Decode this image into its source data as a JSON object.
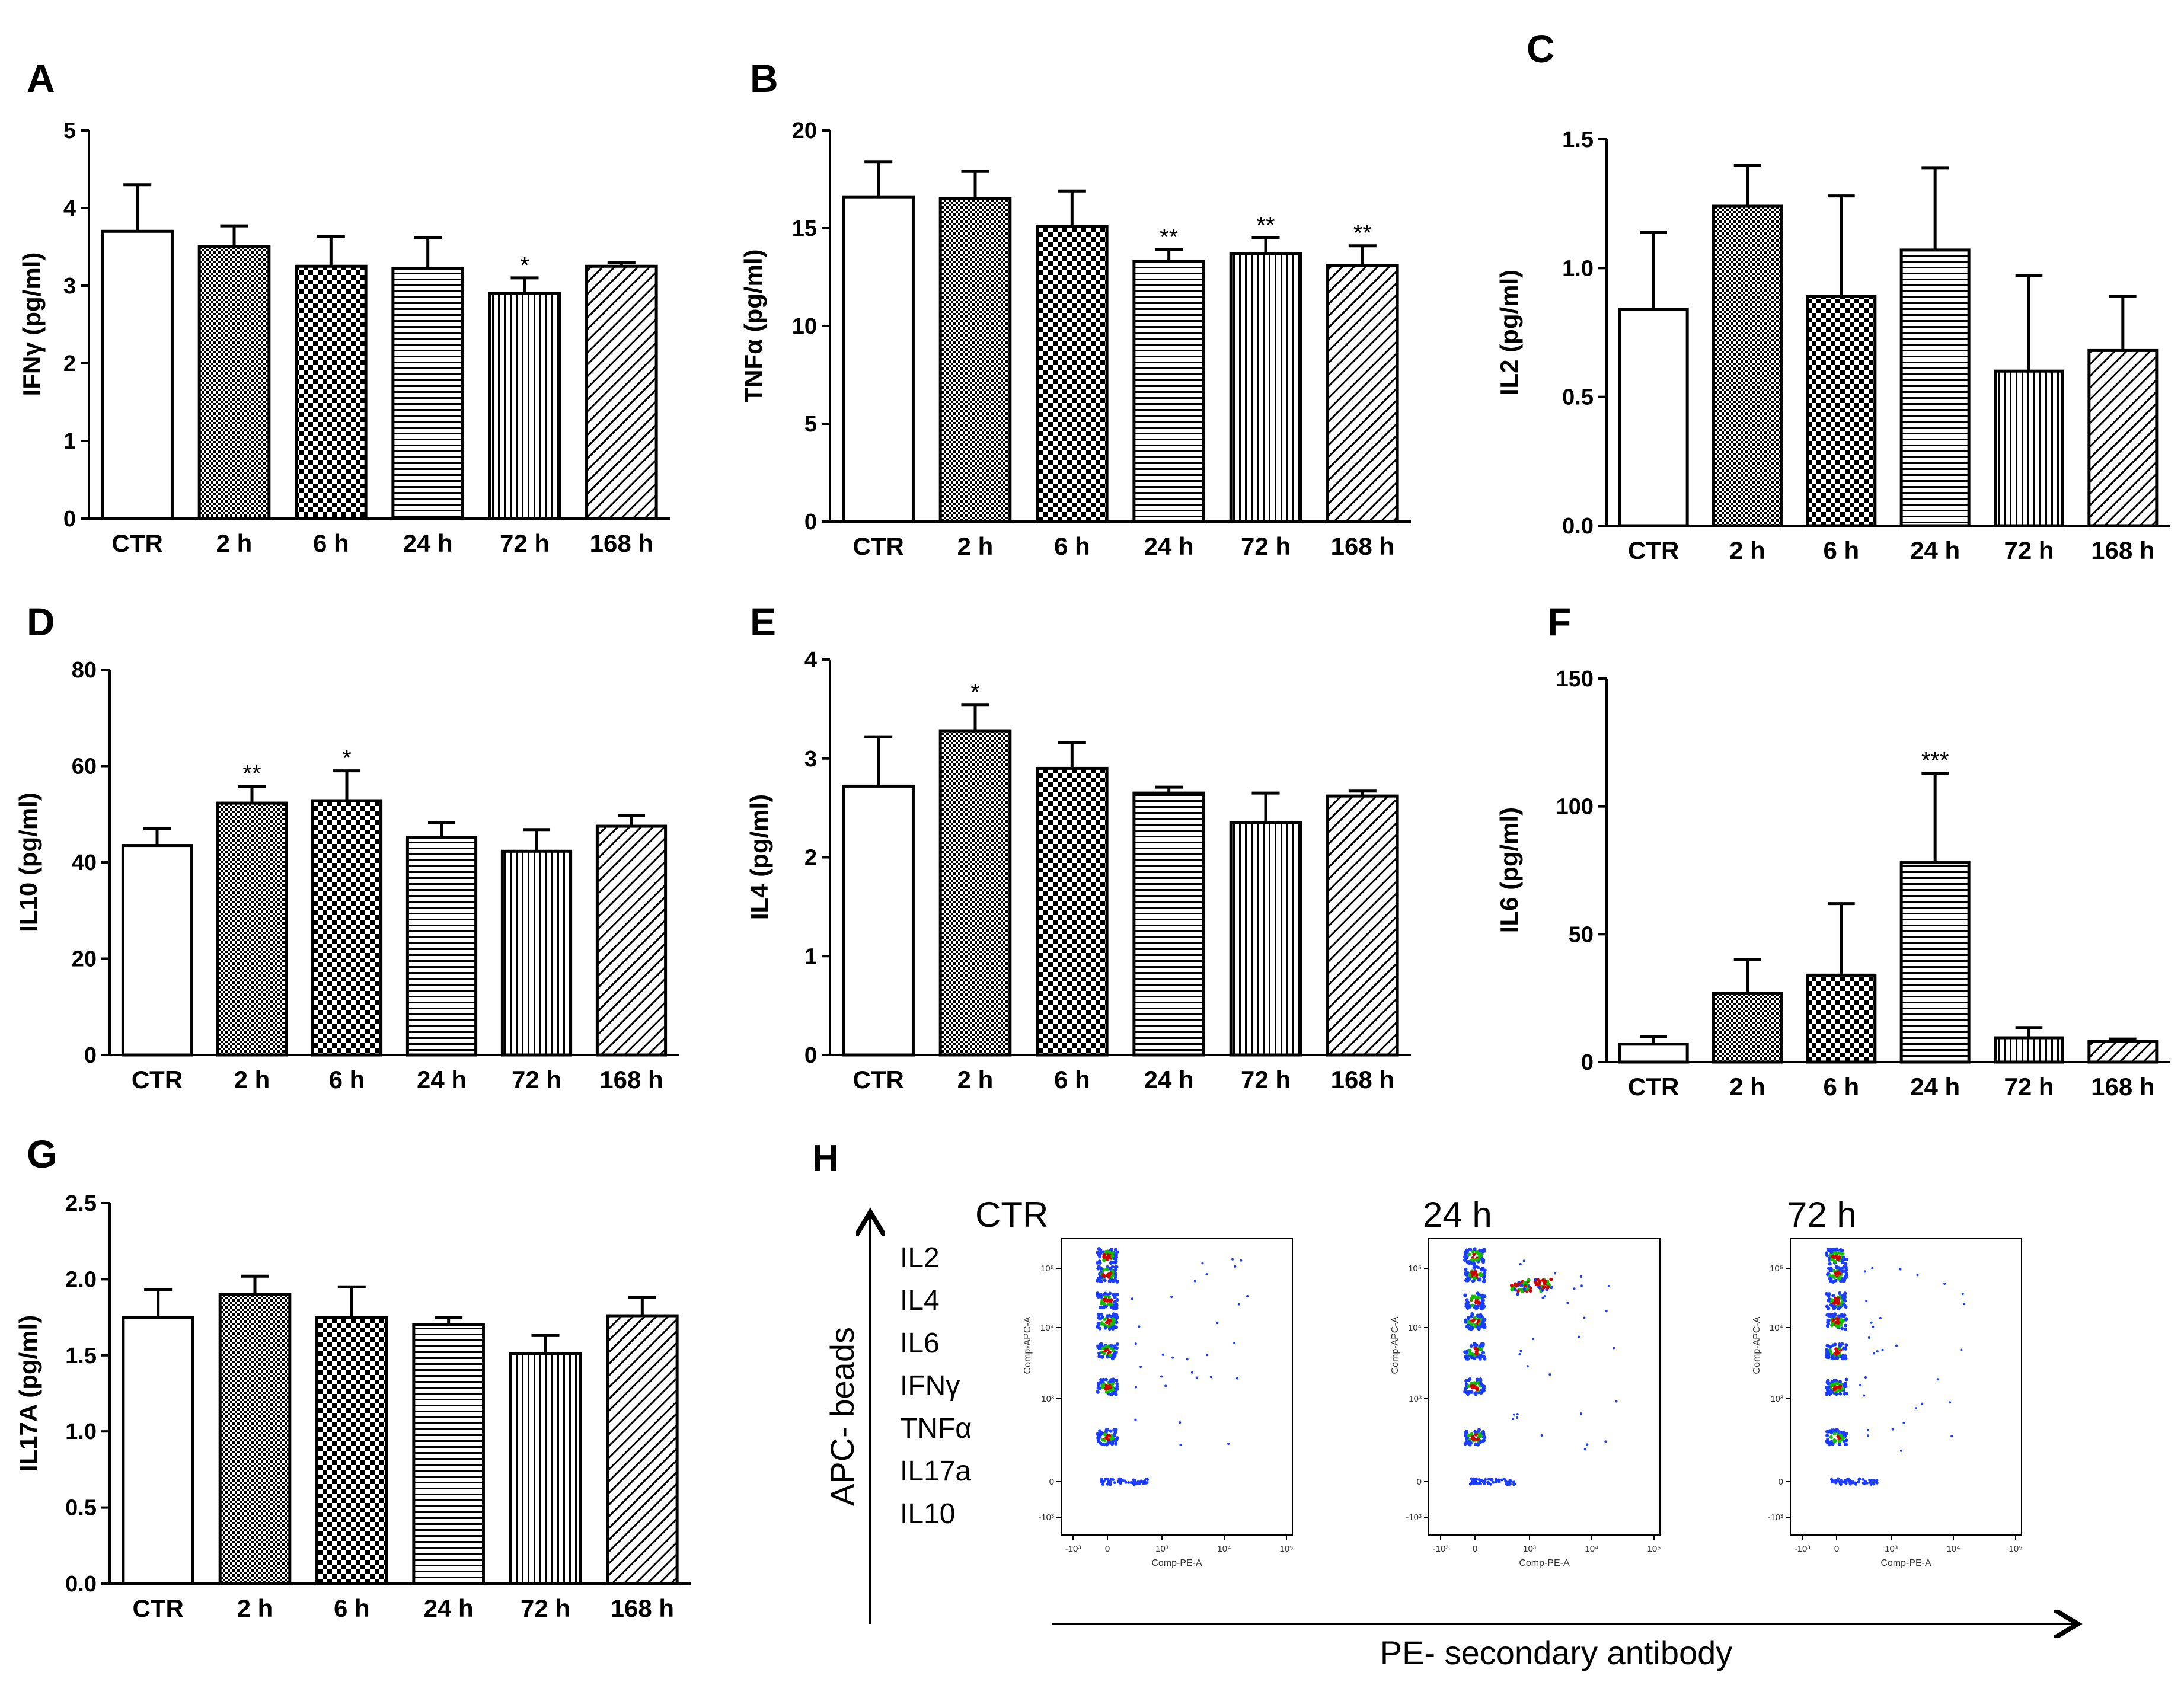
{
  "colors": {
    "ink": "#000000",
    "paper": "#ffffff",
    "dot_high": "#d00000",
    "dot_mid": "#12c000",
    "dot_low": "#1a3cff"
  },
  "chart_data": [
    {
      "type": "bar",
      "panel": "A",
      "ylabel": "IFNγ (pg/ml)",
      "categories": [
        "CTR",
        "2 h",
        "6 h",
        "24 h",
        "72 h",
        "168 h"
      ],
      "values": [
        3.7,
        3.5,
        3.25,
        3.22,
        2.9,
        3.25
      ],
      "errors": [
        0.6,
        0.27,
        0.38,
        0.4,
        0.2,
        0.05
      ],
      "significance": [
        "",
        "",
        "",
        "",
        "*",
        ""
      ],
      "ylim": [
        0,
        5
      ],
      "yticks": [
        "0",
        "1",
        "2",
        "3",
        "4",
        "5"
      ]
    },
    {
      "type": "bar",
      "panel": "B",
      "ylabel": "TNFα (pg/ml)",
      "categories": [
        "CTR",
        "2 h",
        "6 h",
        "24 h",
        "72 h",
        "168 h"
      ],
      "values": [
        16.6,
        16.5,
        15.1,
        13.3,
        13.7,
        13.1
      ],
      "errors": [
        1.8,
        1.4,
        1.8,
        0.6,
        0.8,
        1.0
      ],
      "significance": [
        "",
        "",
        "",
        "**",
        "**",
        "**"
      ],
      "ylim": [
        0,
        20
      ],
      "yticks": [
        "0",
        "5",
        "10",
        "15",
        "20"
      ]
    },
    {
      "type": "bar",
      "panel": "C",
      "ylabel": "IL2 (pg/ml)",
      "categories": [
        "CTR",
        "2 h",
        "6 h",
        "24 h",
        "72 h",
        "168 h"
      ],
      "values": [
        0.84,
        1.24,
        0.89,
        1.07,
        0.6,
        0.68
      ],
      "errors": [
        0.3,
        0.16,
        0.39,
        0.32,
        0.37,
        0.21
      ],
      "significance": [
        "",
        "",
        "",
        "",
        "",
        ""
      ],
      "ylim": [
        0,
        1.5
      ],
      "yticks": [
        "0.0",
        "0.5",
        "1.0",
        "1.5"
      ]
    },
    {
      "type": "bar",
      "panel": "D",
      "ylabel": "IL10 (pg/ml)",
      "categories": [
        "CTR",
        "2 h",
        "6 h",
        "24 h",
        "72 h",
        "168 h"
      ],
      "values": [
        43.5,
        52.3,
        52.8,
        45.2,
        42.3,
        47.5
      ],
      "errors": [
        3.5,
        3.5,
        6.2,
        3.0,
        4.5,
        2.2
      ],
      "significance": [
        "",
        "**",
        "*",
        "",
        "",
        ""
      ],
      "ylim": [
        0,
        80
      ],
      "yticks": [
        "0",
        "20",
        "40",
        "60",
        "80"
      ]
    },
    {
      "type": "bar",
      "panel": "E",
      "ylabel": "IL4 (pg/ml)",
      "categories": [
        "CTR",
        "2 h",
        "6 h",
        "24 h",
        "72 h",
        "168 h"
      ],
      "values": [
        2.72,
        3.28,
        2.9,
        2.65,
        2.35,
        2.62
      ],
      "errors": [
        0.5,
        0.26,
        0.26,
        0.06,
        0.3,
        0.05
      ],
      "significance": [
        "",
        "*",
        "",
        "",
        "",
        ""
      ],
      "ylim": [
        0,
        4
      ],
      "yticks": [
        "0",
        "1",
        "2",
        "3",
        "4"
      ]
    },
    {
      "type": "bar",
      "panel": "F",
      "ylabel": "IL6 (pg/ml)",
      "categories": [
        "CTR",
        "2 h",
        "6 h",
        "24 h",
        "72 h",
        "168 h"
      ],
      "values": [
        7,
        27,
        34,
        78,
        9.5,
        8
      ],
      "errors": [
        3,
        13,
        28,
        35,
        4,
        1
      ],
      "significance": [
        "",
        "",
        "",
        "***",
        "",
        ""
      ],
      "ylim": [
        0,
        150
      ],
      "yticks": [
        "0",
        "50",
        "100",
        "150"
      ]
    },
    {
      "type": "bar",
      "panel": "G",
      "ylabel": "IL17A (pg/ml)",
      "categories": [
        "CTR",
        "2 h",
        "6 h",
        "24 h",
        "72 h",
        "168 h"
      ],
      "values": [
        1.75,
        1.9,
        1.75,
        1.7,
        1.51,
        1.76
      ],
      "errors": [
        0.18,
        0.12,
        0.2,
        0.05,
        0.12,
        0.12
      ],
      "significance": [
        "",
        "",
        "",
        "",
        "",
        ""
      ],
      "ylim": [
        0,
        2.5
      ],
      "yticks": [
        "0.0",
        "0.5",
        "1.0",
        "1.5",
        "2.0",
        "2.5"
      ]
    },
    {
      "type": "scatter",
      "panel": "H",
      "y_axis_title": "APC- beads",
      "x_axis_title": "PE- secondary antibody",
      "bead_labels": [
        "IL2",
        "IL4",
        "IL6",
        "IFNγ",
        "TNFα",
        "IL17a",
        "IL10"
      ],
      "x_channel": "Comp-PE-A",
      "y_channel": "Comp-APC-A",
      "xtick_labels": [
        "-10³",
        "0",
        "10³",
        "10⁴",
        "10⁵"
      ],
      "ytick_labels": [
        "10⁵",
        "10⁴",
        "10³",
        "0",
        "-10³"
      ],
      "plots": [
        {
          "title": "CTR",
          "il4_shift": false
        },
        {
          "title": "24 h",
          "il4_shift": true
        },
        {
          "title": "72 h",
          "il4_shift": false
        }
      ]
    }
  ]
}
